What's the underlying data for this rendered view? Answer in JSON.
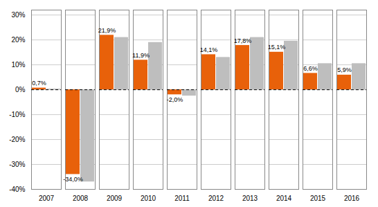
{
  "chart_data": {
    "type": "bar",
    "categories": [
      "2007",
      "2008",
      "2009",
      "2010",
      "2011",
      "2012",
      "2013",
      "2014",
      "2015",
      "2016"
    ],
    "series": [
      {
        "color": "#E8610A",
        "values": [
          0.7,
          -34.0,
          21.9,
          11.9,
          -2.0,
          14.1,
          17.8,
          15.1,
          6.6,
          5.9
        ],
        "data_labels": true,
        "value_labels": [
          "0,7%",
          "-34,0%",
          "21,9%",
          "11,9%",
          "-2,0%",
          "14,1%",
          "17,8%",
          "15,1%",
          "6,6%",
          "5,9%"
        ]
      },
      {
        "color": "#BEBEBE",
        "values": [
          0.3,
          -37.0,
          21.0,
          19.0,
          -2.5,
          13.0,
          21.0,
          19.5,
          10.5,
          10.5
        ]
      }
    ],
    "ylim": [
      -40,
      32
    ],
    "yticks": [
      {
        "value": -40,
        "label": "-40%"
      },
      {
        "value": -30,
        "label": "-30%"
      },
      {
        "value": -20,
        "label": "-20%"
      },
      {
        "value": -10,
        "label": "-10%"
      },
      {
        "value": 0,
        "label": "0%"
      },
      {
        "value": 10,
        "label": "10%"
      },
      {
        "value": 20,
        "label": "20%"
      },
      {
        "value": 30,
        "label": "30%"
      }
    ],
    "grid": true
  }
}
